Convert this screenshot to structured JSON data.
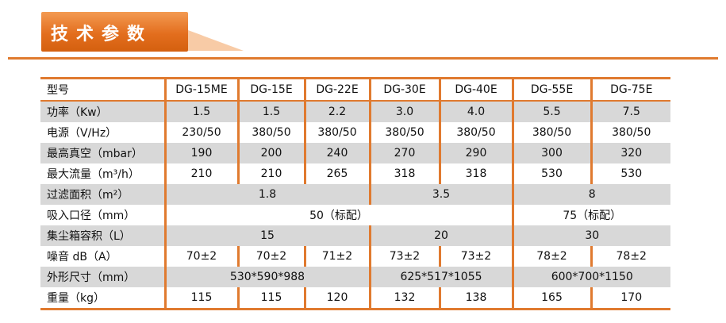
{
  "header": {
    "title": "技术参数"
  },
  "table": {
    "header_label": "型号",
    "models": [
      "DG-15ME",
      "DG-15E",
      "DG-22E",
      "DG-30E",
      "DG-40E",
      "DG-55E",
      "DG-75E"
    ],
    "rows": {
      "power": {
        "label": "功率（Kw）",
        "values": [
          "1.5",
          "1.5",
          "2.2",
          "3.0",
          "4.0",
          "5.5",
          "7.5"
        ]
      },
      "supply": {
        "label": "电源（V/Hz）",
        "values": [
          "230/50",
          "380/50",
          "380/50",
          "380/50",
          "380/50",
          "380/50",
          "380/50"
        ]
      },
      "vacuum": {
        "label": "最高真空（mbar）",
        "values": [
          "190",
          "200",
          "240",
          "270",
          "290",
          "300",
          "320"
        ]
      },
      "flow": {
        "label": "最大流量（m³/h）",
        "values": [
          "210",
          "210",
          "265",
          "318",
          "318",
          "530",
          "530"
        ]
      },
      "filter": {
        "label": "过滤面积（m²）",
        "values": [
          "1.8",
          "3.5",
          "8"
        ]
      },
      "inlet": {
        "label": "吸入口径（mm）",
        "values": [
          "50（标配）",
          "75（标配）"
        ]
      },
      "bin": {
        "label": "集尘箱容积（L）",
        "values": [
          "15",
          "20",
          "30"
        ]
      },
      "noise": {
        "label": "噪音 dB（A）",
        "values": [
          "70±2",
          "70±2",
          "71±2",
          "73±2",
          "73±2",
          "78±2",
          "78±2"
        ]
      },
      "size": {
        "label": "外形尺寸（mm）",
        "values": [
          "530*590*988",
          "625*517*1055",
          "600*700*1150"
        ]
      },
      "weight": {
        "label": "重量（kg）",
        "values": [
          "115",
          "115",
          "120",
          "132",
          "138",
          "165",
          "170"
        ]
      }
    }
  },
  "colors": {
    "accent": "#e07a2f",
    "row_gray": "#d8d8d8"
  }
}
